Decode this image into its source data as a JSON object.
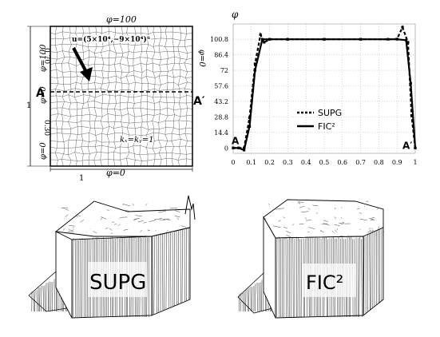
{
  "panel_a": {
    "bc_top": "φ=100",
    "bc_bottom": "φ=0",
    "bc_right": "φ=0",
    "bc_left_upper": "φ=100",
    "bc_left_lower_1": "φ=0",
    "bc_left_lower_2": "φ=0",
    "velocity_label": "u=(5×10⁴,−9×10⁴)ᵀ",
    "diffusion_label": "kₓ=kᵧ=1",
    "section_start": "A",
    "section_end": "A′",
    "dim_height_total": "1",
    "dim_height_upper": "0.70",
    "dim_height_lower": "0.30",
    "dim_width": "1"
  },
  "chart_data": {
    "type": "line",
    "ylabel": "φ",
    "yticks": [
      "0",
      "14.4",
      "28.8",
      "43.2",
      "57.6",
      "72",
      "86.4",
      "100.8"
    ],
    "xticks": [
      "0",
      "0.1",
      "0.2",
      "0.3",
      "0.4",
      "0.5",
      "0.6",
      "0.7",
      "0.8",
      "0.9",
      "1"
    ],
    "xlim": [
      0,
      1
    ],
    "ylim": [
      -5,
      115
    ],
    "grid": true,
    "legend_position": "center",
    "point_labels": {
      "start": "A",
      "end": "A′"
    },
    "series": [
      {
        "name": "SUPG",
        "style": "dashed",
        "x": [
          0,
          0.03,
          0.06,
          0.09,
          0.12,
          0.15,
          0.17,
          0.2,
          0.3,
          0.5,
          0.7,
          0.85,
          0.9,
          0.93,
          0.96,
          0.98,
          1.0
        ],
        "y": [
          0,
          0,
          0,
          28,
          78,
          105,
          98,
          100.8,
          100.8,
          100.8,
          100.8,
          100.8,
          101,
          112,
          98,
          30,
          0
        ]
      },
      {
        "name": "FIC²",
        "style": "solid",
        "x": [
          0,
          0.03,
          0.06,
          0.09,
          0.12,
          0.16,
          0.2,
          0.3,
          0.5,
          0.7,
          0.9,
          0.95,
          0.975,
          1.0
        ],
        "y": [
          0,
          0,
          -2,
          20,
          72,
          100.8,
          100.8,
          100.8,
          100.8,
          100.8,
          100.8,
          100,
          60,
          0
        ]
      }
    ]
  },
  "surface_left": {
    "label": "SUPG"
  },
  "surface_right": {
    "label": "FIC²"
  }
}
